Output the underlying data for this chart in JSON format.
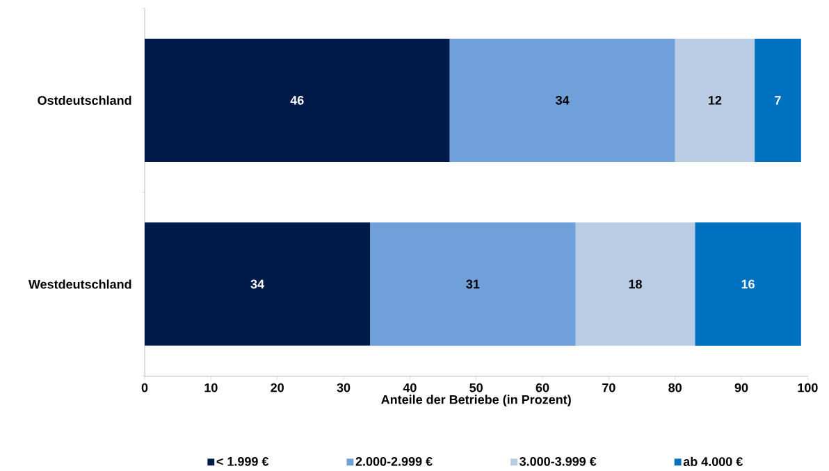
{
  "chart_data": {
    "type": "bar",
    "orientation": "horizontal",
    "stacked": true,
    "data_labels": true,
    "categories": [
      "Ostdeutschland",
      "Westdeutschland"
    ],
    "series": [
      {
        "name": "< 1.999 €",
        "color": "#001a4a",
        "values": [
          46,
          34
        ]
      },
      {
        "name": "2.000-2.999 €",
        "color": "#6fa0da",
        "values": [
          34,
          31
        ]
      },
      {
        "name": "3.000-3.999 €",
        "color": "#b9cce4",
        "values": [
          12,
          18
        ]
      },
      {
        "name": "ab 4.000 €",
        "color": "#0070c0",
        "values": [
          7,
          16
        ]
      }
    ],
    "xlabel": "Anteile der Betriebe (in Prozent)",
    "xlim": [
      0,
      100
    ],
    "xticks": [
      0,
      10,
      20,
      30,
      40,
      50,
      60,
      70,
      80,
      90,
      100
    ],
    "legend": "bottom",
    "grid": false
  }
}
